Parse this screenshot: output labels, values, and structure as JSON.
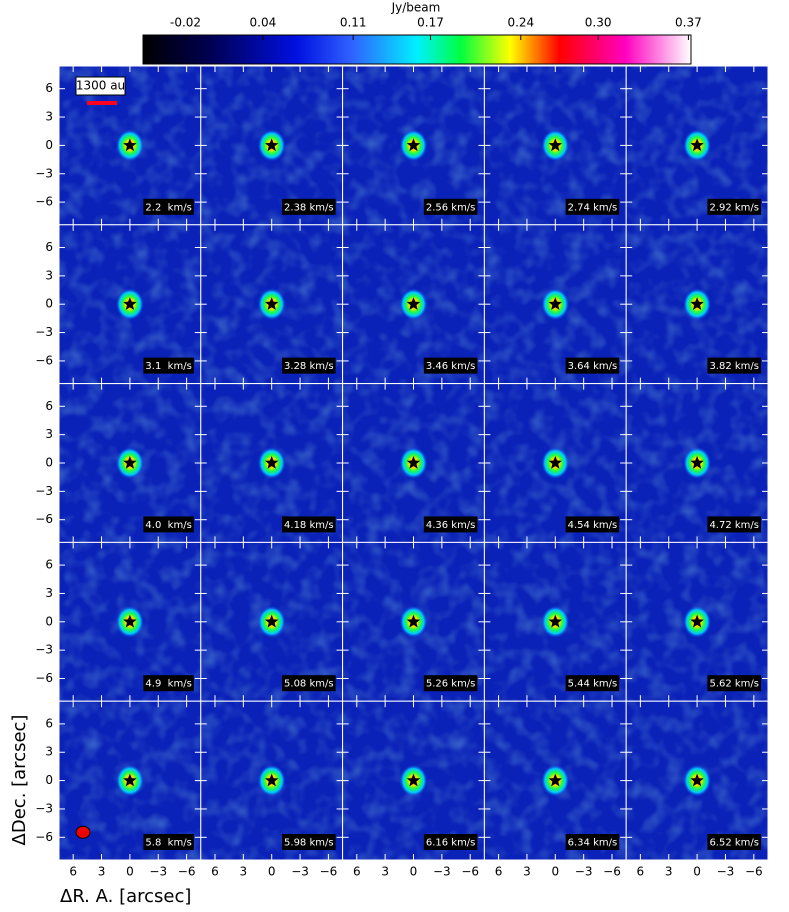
{
  "chart_data": {
    "type": "channel_map",
    "colorbar": {
      "label": "Jy/beam",
      "lim": [
        -0.053,
        0.372
      ],
      "ticks": [
        -0.02,
        0.04,
        0.11,
        0.17,
        0.24,
        {
          "value": 0.3,
          "label": "0.30"
        },
        0.37
      ]
    },
    "xlabel": "ΔR. A. [arcsec]",
    "ylabel": "ΔDec. [arcsec]",
    "xlim": [
      7.5,
      -7.5
    ],
    "ylim": [
      -8.4,
      8.4
    ],
    "xticks": [
      6,
      3,
      0,
      {
        "value": -3,
        "label": "−3"
      },
      {
        "value": -6,
        "label": "−6"
      }
    ],
    "yticks": [
      {
        "value": -6,
        "label": "−6"
      },
      {
        "value": -3,
        "label": "−3"
      },
      0,
      3,
      6
    ],
    "scale_bar_label": "1300 au",
    "panels": [
      "2.2  km/s",
      "2.38 km/s",
      "2.56 km/s",
      "2.74 km/s",
      "2.92 km/s",
      "3.1  km/s",
      "3.28 km/s",
      "3.46 km/s",
      "3.64 km/s",
      "3.82 km/s",
      "4.0  km/s",
      "4.18 km/s",
      "4.36 km/s",
      "4.54 km/s",
      "4.72 km/s",
      "4.9  km/s",
      "5.08 km/s",
      "5.26 km/s",
      "5.44 km/s",
      "5.62 km/s",
      "5.8  km/s",
      "5.98 km/s",
      "6.16 km/s",
      "6.34 km/s",
      "6.52 km/s"
    ]
  }
}
